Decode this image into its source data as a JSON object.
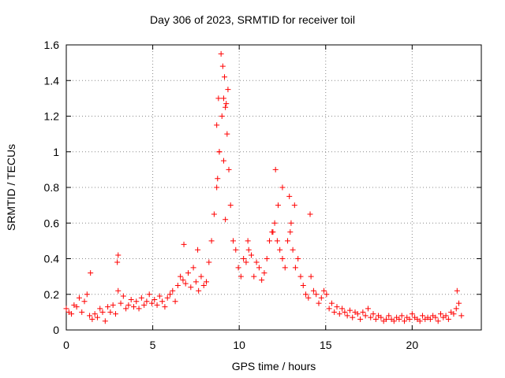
{
  "chart_data": {
    "type": "scatter",
    "title": "Day 306 of 2023, SRMTID for receiver toil",
    "xlabel": "GPS time / hours",
    "ylabel": "SRMTID / TECUs",
    "xlim": [
      0,
      24
    ],
    "ylim": [
      0,
      1.6
    ],
    "xticks": [
      0,
      5,
      10,
      15,
      20
    ],
    "xtick_labels": [
      "0",
      "5",
      "10",
      "15",
      "20"
    ],
    "yticks": [
      0,
      0.2,
      0.4,
      0.6,
      0.8,
      1,
      1.2,
      1.4,
      1.6
    ],
    "ytick_labels": [
      "0",
      "0.2",
      "0.4",
      "0.6",
      "0.8",
      "1",
      "1.2",
      "1.4",
      "1.6"
    ],
    "grid": true,
    "marker": "+",
    "color": "#ff0000",
    "series": [
      {
        "name": "SRMTID",
        "x": [
          0.0,
          0.15,
          0.3,
          0.45,
          0.6,
          0.75,
          0.9,
          1.05,
          1.2,
          1.35,
          1.5,
          1.65,
          1.8,
          1.95,
          2.1,
          2.25,
          2.4,
          2.55,
          2.7,
          2.85,
          3.0,
          3.15,
          3.3,
          3.45,
          3.6,
          3.75,
          3.9,
          4.05,
          4.2,
          4.35,
          4.5,
          4.65,
          4.8,
          4.95,
          5.1,
          5.25,
          5.4,
          5.55,
          5.7,
          5.85,
          6.0,
          6.15,
          6.3,
          6.45,
          6.6,
          6.75,
          6.9,
          7.05,
          7.2,
          7.35,
          7.5,
          7.65,
          7.8,
          7.95,
          8.1,
          8.25,
          8.4,
          8.55,
          8.7,
          8.85,
          9.0,
          9.1,
          9.2,
          9.3,
          9.4,
          9.5,
          9.65,
          9.8,
          9.95,
          10.1,
          10.25,
          10.4,
          10.55,
          10.7,
          10.85,
          11.0,
          11.15,
          11.3,
          11.45,
          11.6,
          11.75,
          11.9,
          12.05,
          12.2,
          12.35,
          12.5,
          12.65,
          12.8,
          12.95,
          13.1,
          13.25,
          13.4,
          13.55,
          13.7,
          13.85,
          14.0,
          14.15,
          14.3,
          14.45,
          14.6,
          14.75,
          14.9,
          15.05,
          15.2,
          15.35,
          15.5,
          15.65,
          15.8,
          15.95,
          16.1,
          16.25,
          16.4,
          16.55,
          16.7,
          16.85,
          17.0,
          17.15,
          17.3,
          17.45,
          17.6,
          17.75,
          17.9,
          18.05,
          18.2,
          18.35,
          18.5,
          18.65,
          18.8,
          18.95,
          19.1,
          19.25,
          19.4,
          19.55,
          19.7,
          19.85,
          20.0,
          20.15,
          20.3,
          20.45,
          20.6,
          20.75,
          20.9,
          21.05,
          21.2,
          21.35,
          21.5,
          21.65,
          21.8,
          21.95,
          22.1,
          22.25,
          22.4,
          22.55,
          22.7,
          22.85,
          3.0,
          8.7,
          8.8,
          8.95,
          9.05,
          9.15,
          9.25,
          9.35,
          8.85,
          9.1,
          12.1,
          12.5,
          12.9,
          13.2,
          14.1,
          8.75,
          9.2,
          11.95,
          12.25,
          13.0,
          1.4,
          2.95,
          6.8,
          7.6,
          10.5,
          22.6
        ],
        "y": [
          0.12,
          0.1,
          0.09,
          0.14,
          0.13,
          0.18,
          0.1,
          0.16,
          0.2,
          0.08,
          0.06,
          0.09,
          0.07,
          0.12,
          0.1,
          0.05,
          0.13,
          0.1,
          0.14,
          0.09,
          0.22,
          0.15,
          0.19,
          0.12,
          0.14,
          0.17,
          0.13,
          0.16,
          0.12,
          0.18,
          0.14,
          0.16,
          0.2,
          0.15,
          0.17,
          0.14,
          0.19,
          0.16,
          0.13,
          0.18,
          0.2,
          0.22,
          0.16,
          0.25,
          0.3,
          0.28,
          0.26,
          0.32,
          0.24,
          0.35,
          0.27,
          0.22,
          0.3,
          0.25,
          0.27,
          0.38,
          0.5,
          0.65,
          0.8,
          1.0,
          1.2,
          1.3,
          1.25,
          1.1,
          0.9,
          0.7,
          0.5,
          0.45,
          0.35,
          0.3,
          0.4,
          0.38,
          0.45,
          0.42,
          0.3,
          0.38,
          0.35,
          0.28,
          0.32,
          0.4,
          0.5,
          0.55,
          0.6,
          0.5,
          0.45,
          0.4,
          0.35,
          0.5,
          0.55,
          0.45,
          0.35,
          0.4,
          0.3,
          0.25,
          0.2,
          0.18,
          0.3,
          0.22,
          0.2,
          0.15,
          0.18,
          0.22,
          0.2,
          0.12,
          0.15,
          0.1,
          0.13,
          0.09,
          0.12,
          0.1,
          0.08,
          0.11,
          0.07,
          0.1,
          0.09,
          0.06,
          0.1,
          0.08,
          0.12,
          0.07,
          0.09,
          0.06,
          0.08,
          0.07,
          0.05,
          0.06,
          0.08,
          0.06,
          0.05,
          0.07,
          0.06,
          0.08,
          0.05,
          0.07,
          0.06,
          0.09,
          0.07,
          0.06,
          0.05,
          0.08,
          0.06,
          0.07,
          0.06,
          0.08,
          0.07,
          0.05,
          0.09,
          0.07,
          0.08,
          0.06,
          0.1,
          0.09,
          0.12,
          0.15,
          0.08,
          0.42,
          1.15,
          1.3,
          1.55,
          1.48,
          1.42,
          1.27,
          1.35,
          1.0,
          0.95,
          0.9,
          0.8,
          0.75,
          0.7,
          0.65,
          0.85,
          0.62,
          0.55,
          0.7,
          0.6,
          0.32,
          0.38,
          0.48,
          0.45,
          0.5,
          0.22
        ]
      }
    ]
  }
}
